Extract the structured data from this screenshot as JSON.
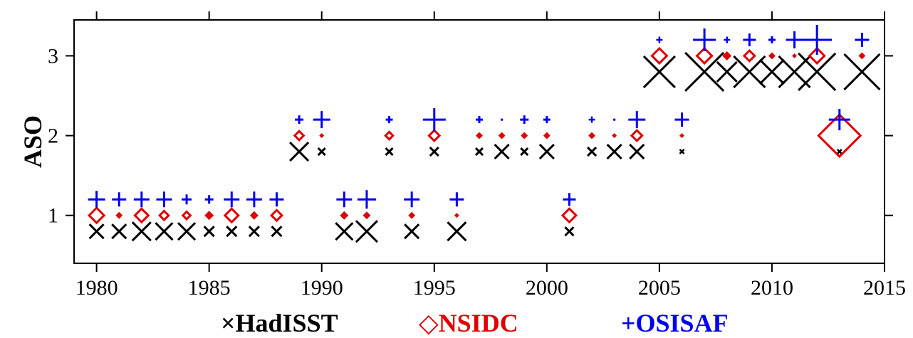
{
  "chart_data": {
    "type": "scatter",
    "xlim": [
      1979,
      2015
    ],
    "ylim": [
      0.4,
      3.45
    ],
    "xticks": [
      1980,
      1985,
      1990,
      1995,
      2000,
      2005,
      2010,
      2015
    ],
    "yticks": [
      1,
      2,
      3
    ],
    "ylabel": "ASO",
    "xlabel": "",
    "grid": false,
    "legend_position": "bottom",
    "series": [
      {
        "name": "HadISST",
        "marker": "x",
        "color": "#000000",
        "points": [
          {
            "x": 1980,
            "y": 0.8,
            "s": 1.0
          },
          {
            "x": 1981,
            "y": 0.8,
            "s": 1.0
          },
          {
            "x": 1982,
            "y": 0.8,
            "s": 1.3
          },
          {
            "x": 1983,
            "y": 0.8,
            "s": 1.2
          },
          {
            "x": 1984,
            "y": 0.8,
            "s": 1.2
          },
          {
            "x": 1985,
            "y": 0.8,
            "s": 0.7
          },
          {
            "x": 1986,
            "y": 0.8,
            "s": 0.7
          },
          {
            "x": 1987,
            "y": 0.8,
            "s": 0.7
          },
          {
            "x": 1988,
            "y": 0.8,
            "s": 0.7
          },
          {
            "x": 1989,
            "y": 1.8,
            "s": 1.3
          },
          {
            "x": 1990,
            "y": 1.8,
            "s": 0.5
          },
          {
            "x": 1991,
            "y": 0.8,
            "s": 1.2
          },
          {
            "x": 1992,
            "y": 0.8,
            "s": 1.5
          },
          {
            "x": 1993,
            "y": 1.8,
            "s": 0.5
          },
          {
            "x": 1994,
            "y": 0.8,
            "s": 1.0
          },
          {
            "x": 1995,
            "y": 1.8,
            "s": 0.6
          },
          {
            "x": 1996,
            "y": 0.8,
            "s": 1.3
          },
          {
            "x": 1997,
            "y": 1.8,
            "s": 0.5
          },
          {
            "x": 1998,
            "y": 1.8,
            "s": 1.0
          },
          {
            "x": 1999,
            "y": 1.8,
            "s": 0.5
          },
          {
            "x": 2000,
            "y": 1.8,
            "s": 1.0
          },
          {
            "x": 2001,
            "y": 0.8,
            "s": 0.6
          },
          {
            "x": 2002,
            "y": 1.8,
            "s": 0.6
          },
          {
            "x": 2003,
            "y": 1.8,
            "s": 1.0
          },
          {
            "x": 2004,
            "y": 1.8,
            "s": 1.0
          },
          {
            "x": 2005,
            "y": 2.8,
            "s": 2.2
          },
          {
            "x": 2006,
            "y": 1.8,
            "s": 0.3
          },
          {
            "x": 2007,
            "y": 2.8,
            "s": 2.7
          },
          {
            "x": 2008,
            "y": 2.8,
            "s": 1.4
          },
          {
            "x": 2009,
            "y": 2.8,
            "s": 2.2
          },
          {
            "x": 2010,
            "y": 2.8,
            "s": 1.7
          },
          {
            "x": 2011,
            "y": 2.8,
            "s": 2.2
          },
          {
            "x": 2012,
            "y": 2.8,
            "s": 2.6
          },
          {
            "x": 2013,
            "y": 1.8,
            "s": 0.3
          },
          {
            "x": 2014,
            "y": 2.8,
            "s": 2.5
          }
        ]
      },
      {
        "name": "NSIDC",
        "marker": "diamond",
        "color": "#e00000",
        "points": [
          {
            "x": 1980,
            "y": 1.0,
            "s": 1.0
          },
          {
            "x": 1981,
            "y": 1.0,
            "s": 0.3
          },
          {
            "x": 1982,
            "y": 1.0,
            "s": 0.9
          },
          {
            "x": 1983,
            "y": 1.0,
            "s": 0.6
          },
          {
            "x": 1984,
            "y": 1.0,
            "s": 0.5
          },
          {
            "x": 1985,
            "y": 1.0,
            "s": 0.45
          },
          {
            "x": 1986,
            "y": 1.0,
            "s": 0.9
          },
          {
            "x": 1987,
            "y": 1.0,
            "s": 0.4
          },
          {
            "x": 1988,
            "y": 1.0,
            "s": 0.7
          },
          {
            "x": 1989,
            "y": 2.0,
            "s": 0.6
          },
          {
            "x": 1990,
            "y": 2.0,
            "s": 0.15
          },
          {
            "x": 1991,
            "y": 1.0,
            "s": 0.4
          },
          {
            "x": 1992,
            "y": 1.0,
            "s": 0.35
          },
          {
            "x": 1993,
            "y": 2.0,
            "s": 0.5
          },
          {
            "x": 1994,
            "y": 1.0,
            "s": 0.3
          },
          {
            "x": 1995,
            "y": 2.0,
            "s": 0.7
          },
          {
            "x": 1996,
            "y": 1.0,
            "s": 0.1
          },
          {
            "x": 1997,
            "y": 2.0,
            "s": 0.3
          },
          {
            "x": 1998,
            "y": 2.0,
            "s": 0.3
          },
          {
            "x": 1999,
            "y": 2.0,
            "s": 0.3
          },
          {
            "x": 2000,
            "y": 2.0,
            "s": 0.3
          },
          {
            "x": 2001,
            "y": 1.0,
            "s": 0.9
          },
          {
            "x": 2002,
            "y": 2.0,
            "s": 0.3
          },
          {
            "x": 2003,
            "y": 2.0,
            "s": 0.15
          },
          {
            "x": 2004,
            "y": 2.0,
            "s": 0.7
          },
          {
            "x": 2005,
            "y": 3.0,
            "s": 1.0
          },
          {
            "x": 2006,
            "y": 2.0,
            "s": 0.15
          },
          {
            "x": 2007,
            "y": 3.0,
            "s": 1.0
          },
          {
            "x": 2008,
            "y": 3.0,
            "s": 0.45
          },
          {
            "x": 2009,
            "y": 3.0,
            "s": 0.7
          },
          {
            "x": 2010,
            "y": 3.0,
            "s": 0.3
          },
          {
            "x": 2011,
            "y": 3.0,
            "s": 0.15
          },
          {
            "x": 2012,
            "y": 3.0,
            "s": 1.0
          },
          {
            "x": 2013,
            "y": 2.0,
            "s": 2.8
          },
          {
            "x": 2014,
            "y": 3.0,
            "s": 0.3
          }
        ]
      },
      {
        "name": "OSISAF",
        "marker": "plus",
        "color": "#0000ee",
        "points": [
          {
            "x": 1980,
            "y": 1.2,
            "s": 1.2
          },
          {
            "x": 1981,
            "y": 1.2,
            "s": 1.0
          },
          {
            "x": 1982,
            "y": 1.2,
            "s": 1.1
          },
          {
            "x": 1983,
            "y": 1.2,
            "s": 1.1
          },
          {
            "x": 1984,
            "y": 1.2,
            "s": 0.7
          },
          {
            "x": 1985,
            "y": 1.2,
            "s": 0.6
          },
          {
            "x": 1986,
            "y": 1.2,
            "s": 1.1
          },
          {
            "x": 1987,
            "y": 1.2,
            "s": 1.1
          },
          {
            "x": 1988,
            "y": 1.2,
            "s": 1.0
          },
          {
            "x": 1989,
            "y": 2.2,
            "s": 0.6
          },
          {
            "x": 1990,
            "y": 2.2,
            "s": 1.2
          },
          {
            "x": 1991,
            "y": 1.2,
            "s": 1.1
          },
          {
            "x": 1992,
            "y": 1.2,
            "s": 1.3
          },
          {
            "x": 1993,
            "y": 2.2,
            "s": 0.5
          },
          {
            "x": 1994,
            "y": 1.2,
            "s": 1.1
          },
          {
            "x": 1995,
            "y": 2.2,
            "s": 1.6
          },
          {
            "x": 1996,
            "y": 1.2,
            "s": 1.0
          },
          {
            "x": 1997,
            "y": 2.2,
            "s": 0.5
          },
          {
            "x": 1998,
            "y": 2.2,
            "s": 0.15
          },
          {
            "x": 1999,
            "y": 2.2,
            "s": 0.6
          },
          {
            "x": 2000,
            "y": 2.2,
            "s": 0.5
          },
          {
            "x": 2001,
            "y": 1.2,
            "s": 0.9
          },
          {
            "x": 2002,
            "y": 2.2,
            "s": 0.45
          },
          {
            "x": 2003,
            "y": 2.2,
            "s": 0.15
          },
          {
            "x": 2004,
            "y": 2.2,
            "s": 1.2
          },
          {
            "x": 2005,
            "y": 3.2,
            "s": 0.45
          },
          {
            "x": 2006,
            "y": 2.2,
            "s": 1.0
          },
          {
            "x": 2007,
            "y": 3.2,
            "s": 1.6
          },
          {
            "x": 2008,
            "y": 3.2,
            "s": 0.45
          },
          {
            "x": 2009,
            "y": 3.2,
            "s": 0.9
          },
          {
            "x": 2010,
            "y": 3.2,
            "s": 0.5
          },
          {
            "x": 2011,
            "y": 3.2,
            "s": 1.2
          },
          {
            "x": 2012,
            "y": 3.2,
            "s": 2.1
          },
          {
            "x": 2013,
            "y": 2.2,
            "s": 1.5
          },
          {
            "x": 2014,
            "y": 3.2,
            "s": 1.0
          }
        ]
      }
    ]
  },
  "legend": {
    "items": [
      {
        "label": "HadISST",
        "symbol": "×",
        "color": "#000000"
      },
      {
        "label": "NSIDC",
        "symbol": "◇",
        "color": "#e00000"
      },
      {
        "label": "OSISAF",
        "symbol": "+",
        "color": "#0000ee"
      }
    ]
  }
}
